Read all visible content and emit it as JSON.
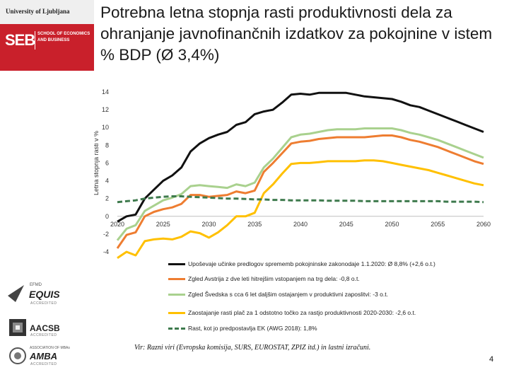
{
  "header": {
    "university": "University of Ljubljana",
    "school_logo": "SEB",
    "school_name": "SCHOOL OF ECONOMICS AND BUSINESS",
    "title": "Potrebna letna stopnja rasti produktivnosti dela za ohranjanje javnofinančnih izdatkov za pokojnine v istem % BDP (Ø 3,4%)"
  },
  "accreditations": [
    {
      "tag": "EFMD",
      "mark": "EQUIS",
      "sub": "ACCREDITED"
    },
    {
      "tag": "",
      "mark": "AACSB",
      "sub": "ACCREDITED"
    },
    {
      "tag": "ASSOCIATION OF MBAs",
      "mark": "AMBA",
      "sub": "ACCREDITED"
    }
  ],
  "colors": {
    "black": "#111111",
    "orange": "#ee7d31",
    "green": "#a9d18e",
    "yellow": "#ffc000",
    "dashed": "#3e7a4d",
    "brand_red": "#c9202b"
  },
  "chart_data": {
    "type": "line",
    "title": "",
    "xlabel": "",
    "ylabel": "Letna stopnja rasti v %",
    "xlim": [
      2020,
      2060
    ],
    "ylim": [
      -4,
      14
    ],
    "x_ticks": [
      2020,
      2025,
      2030,
      2035,
      2040,
      2045,
      2050,
      2055,
      2060
    ],
    "y_ticks": [
      14,
      12,
      10,
      8,
      6,
      4,
      2,
      0,
      -2,
      -4
    ],
    "x": [
      2020,
      2021,
      2022,
      2023,
      2024,
      2025,
      2026,
      2027,
      2028,
      2029,
      2030,
      2031,
      2032,
      2033,
      2034,
      2035,
      2036,
      2037,
      2038,
      2039,
      2040,
      2041,
      2042,
      2043,
      2044,
      2045,
      2046,
      2047,
      2048,
      2049,
      2050,
      2051,
      2052,
      2053,
      2054,
      2055,
      2056,
      2057,
      2058,
      2059,
      2060
    ],
    "series": [
      {
        "name": "Upoševaje učinke predlogov sprememb pokojninske zakonodaje 1.1.2020: Ø 8,8% (+2,6 o.t.)",
        "color": "#111111",
        "style": "solid",
        "values": [
          -0.6,
          0.0,
          0.2,
          2.0,
          3.0,
          4.0,
          4.6,
          5.5,
          7.3,
          8.2,
          8.8,
          9.2,
          9.5,
          10.3,
          10.6,
          11.5,
          11.8,
          12.0,
          12.8,
          13.7,
          13.8,
          13.7,
          13.9,
          13.9,
          13.9,
          13.9,
          13.7,
          13.5,
          13.4,
          13.3,
          13.2,
          12.9,
          12.5,
          12.3,
          11.9,
          11.5,
          11.1,
          10.7,
          10.3,
          9.9,
          9.5
        ]
      },
      {
        "name": "Zgled Avstrija z dve leti hitrejšim vstopanjem na trg dela: -0,8 o.t.",
        "color": "#ee7d31",
        "style": "solid",
        "values": [
          -3.6,
          -2.1,
          -1.8,
          0.0,
          0.5,
          0.8,
          1.0,
          1.4,
          2.4,
          2.4,
          2.2,
          2.3,
          2.4,
          2.8,
          2.6,
          2.9,
          5.0,
          6.0,
          7.1,
          8.2,
          8.4,
          8.5,
          8.7,
          8.8,
          8.9,
          8.9,
          8.9,
          8.9,
          9.0,
          9.1,
          9.1,
          8.9,
          8.6,
          8.4,
          8.1,
          7.8,
          7.4,
          7.0,
          6.6,
          6.2,
          5.9
        ]
      },
      {
        "name": "Zgled Švedska s cca 6 let daljšim ostajanjem v produktivni zaposlitvi: -3 o.t.",
        "color": "#a9d18e",
        "style": "solid",
        "values": [
          -2.7,
          -1.4,
          -1.0,
          0.6,
          1.2,
          1.8,
          2.1,
          2.5,
          3.4,
          3.5,
          3.4,
          3.3,
          3.2,
          3.6,
          3.4,
          3.8,
          5.5,
          6.5,
          7.7,
          8.9,
          9.2,
          9.3,
          9.5,
          9.7,
          9.8,
          9.8,
          9.8,
          9.9,
          9.9,
          9.9,
          9.9,
          9.7,
          9.4,
          9.2,
          8.9,
          8.6,
          8.2,
          7.8,
          7.4,
          7.0,
          6.6
        ]
      },
      {
        "name": "Zaostajanje rasti plač za 1 odstotno točko za rastjo produktivnosti 2020-2030: -2,6 o.t.",
        "color": "#ffc000",
        "style": "solid",
        "values": [
          -4.7,
          -4.0,
          -4.4,
          -2.8,
          -2.6,
          -2.5,
          -2.6,
          -2.3,
          -1.7,
          -1.9,
          -2.4,
          -1.8,
          -1.0,
          0.0,
          0.0,
          0.4,
          2.6,
          3.6,
          4.8,
          5.9,
          6.0,
          6.0,
          6.1,
          6.2,
          6.2,
          6.2,
          6.2,
          6.3,
          6.3,
          6.2,
          6.0,
          5.8,
          5.6,
          5.4,
          5.2,
          4.9,
          4.6,
          4.3,
          4.0,
          3.7,
          3.5
        ]
      },
      {
        "name": "Rast, kot jo predpostavlja EK (AWG 2018): 1,8%",
        "color": "#3e7a4d",
        "style": "dashed",
        "values": [
          1.6,
          1.7,
          1.8,
          2.0,
          2.1,
          2.2,
          2.25,
          2.25,
          2.2,
          2.15,
          2.1,
          2.05,
          2.0,
          2.0,
          1.95,
          1.9,
          1.9,
          1.85,
          1.85,
          1.8,
          1.8,
          1.8,
          1.8,
          1.75,
          1.75,
          1.75,
          1.75,
          1.7,
          1.7,
          1.7,
          1.7,
          1.7,
          1.7,
          1.7,
          1.7,
          1.7,
          1.65,
          1.65,
          1.65,
          1.65,
          1.6
        ]
      }
    ]
  },
  "source": "Vir: Razni viri (Evropska komisija, SURS, EUROSTAT, ZPIZ itd.) in lastni izračuni.",
  "page_number": "4"
}
